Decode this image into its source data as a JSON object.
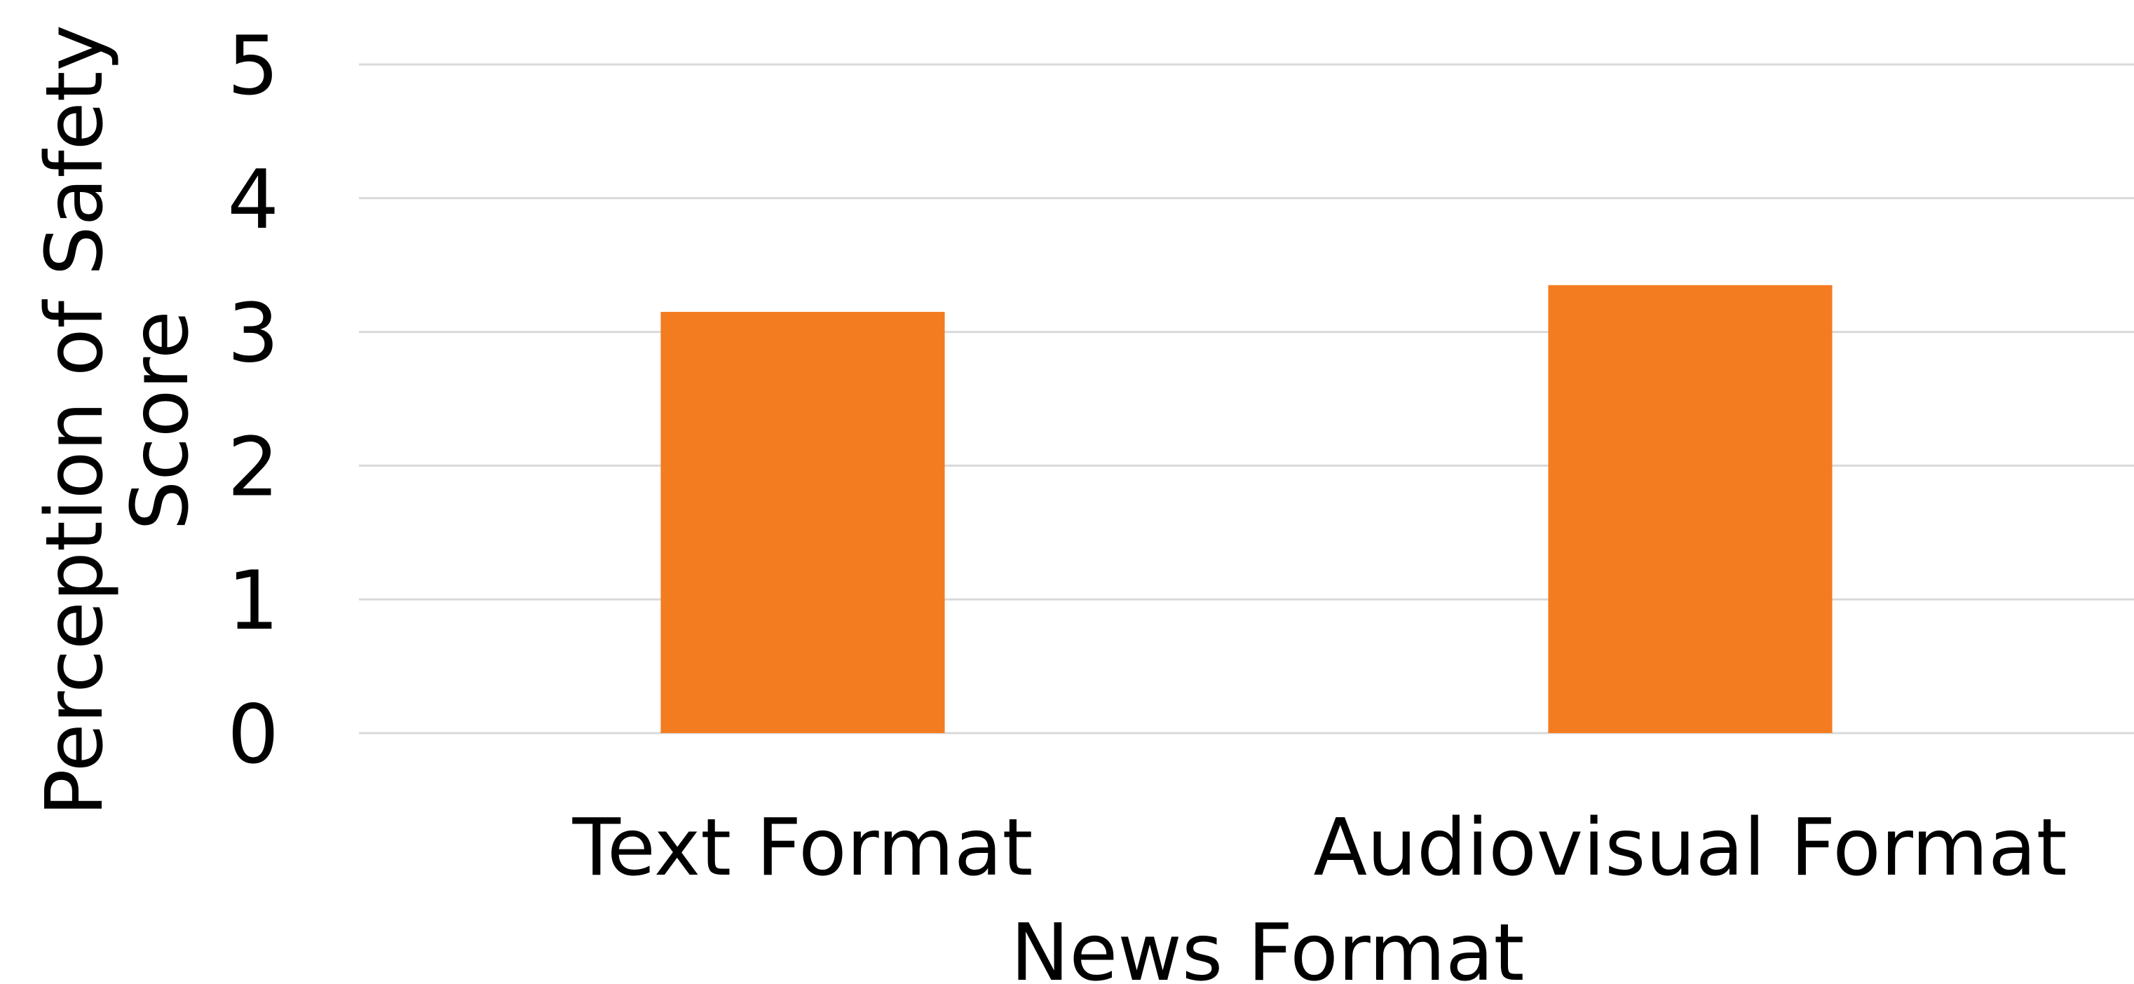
{
  "chart_data": {
    "type": "bar",
    "categories": [
      "Text Format",
      "Audiovisual Format"
    ],
    "values": [
      3.15,
      3.35
    ],
    "title": "",
    "xlabel": "News Format",
    "ylabel_lines": [
      "Perception of Safety",
      "Score"
    ],
    "ylim": [
      0,
      5
    ],
    "yticks": [
      "0",
      "1",
      "2",
      "3",
      "4",
      "5"
    ],
    "grid": true,
    "legend": "none",
    "bar_color": "#F47C20",
    "grid_color": "#D9D9D9"
  }
}
